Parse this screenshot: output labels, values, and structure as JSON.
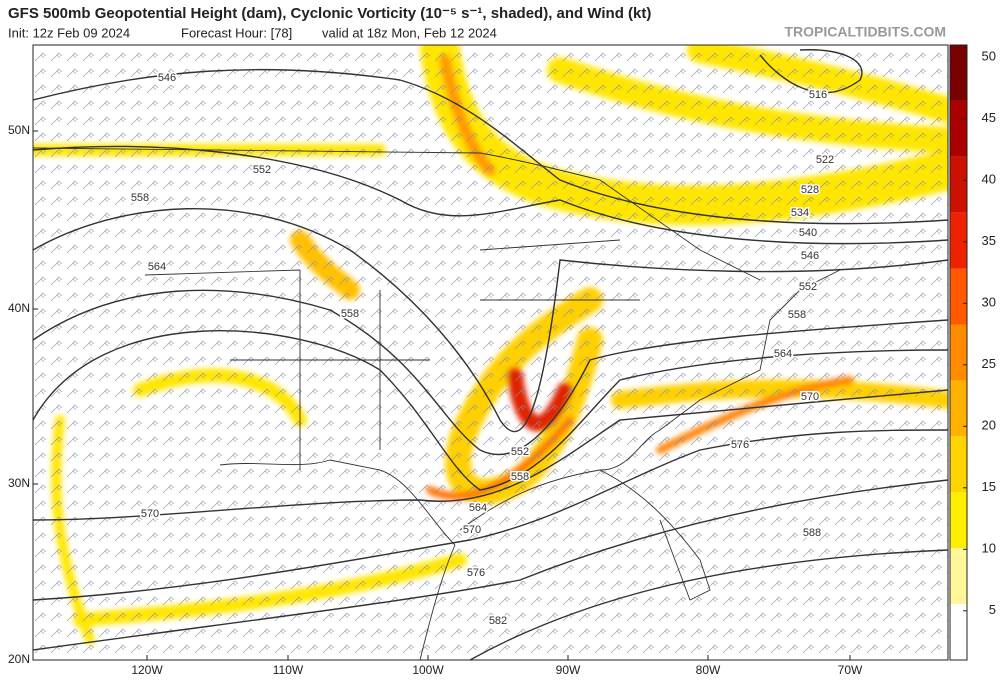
{
  "header": {
    "title": "GFS 500mb Geopotential Height (dam), Cyclonic Vorticity (10⁻⁵ s⁻¹, shaded), and Wind (kt)",
    "init": "Init: 12z Feb 09 2024",
    "forecast_hour": "Forecast Hour: [78]",
    "valid": "valid at 18z Mon, Feb 12 2024",
    "credit": "TROPICALTIDBITS.COM"
  },
  "map": {
    "lat_labels": [
      "50N",
      "40N",
      "30N",
      "20N"
    ],
    "lon_labels": [
      "120W",
      "110W",
      "100W",
      "90W",
      "80W",
      "70W"
    ],
    "contour_labels": [
      "546",
      "552",
      "558",
      "564",
      "558",
      "516",
      "522",
      "528",
      "534",
      "540",
      "546",
      "552",
      "558",
      "564",
      "570",
      "576",
      "588",
      "570",
      "576",
      "582",
      "552",
      "558",
      "564",
      "570"
    ]
  },
  "colorbar": {
    "lim": [
      1,
      51
    ],
    "ticks": [
      5,
      10,
      15,
      20,
      25,
      30,
      35,
      40,
      45,
      50
    ],
    "colors": [
      "#ffffff",
      "#fff799",
      "#ffee00",
      "#ffd400",
      "#ffb300",
      "#ff8c00",
      "#ff5a00",
      "#ee2200",
      "#cc1100",
      "#aa0000",
      "#7a0000"
    ]
  }
}
